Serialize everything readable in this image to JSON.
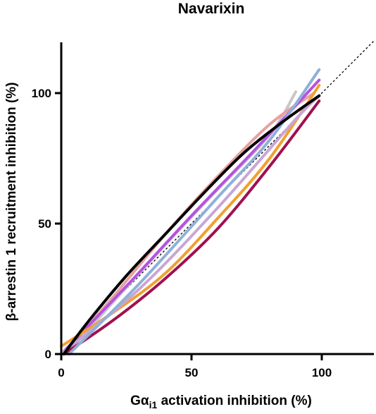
{
  "chart_data": {
    "type": "line",
    "title": "Navarixin",
    "xlabel": {
      "main": "Gα",
      "sub": "i1",
      "rest": " activation inhibition (%)"
    },
    "ylabel": "β-arrestin 1 recruitment inhibition (%)",
    "xlim": [
      0,
      120
    ],
    "ylim": [
      0,
      120
    ],
    "xticks": [
      "0",
      "50",
      "100"
    ],
    "yticks": [
      "0",
      "50",
      "100"
    ],
    "reference_line": {
      "style": "dashed",
      "color": "#000000",
      "points": [
        [
          0,
          0
        ],
        [
          120,
          120
        ]
      ]
    },
    "series": [
      {
        "color": "#c8c8c8",
        "points": [
          [
            2,
            0
          ],
          [
            20,
            20
          ],
          [
            40,
            42
          ],
          [
            60,
            63
          ],
          [
            80,
            84
          ],
          [
            90,
            100.5
          ]
        ]
      },
      {
        "color": "#e8a0a0",
        "points": [
          [
            1,
            0
          ],
          [
            20,
            22
          ],
          [
            40,
            46
          ],
          [
            60,
            68
          ],
          [
            80,
            88
          ],
          [
            97,
            100
          ]
        ]
      },
      {
        "color": "#b552e0",
        "points": [
          [
            0,
            0
          ],
          [
            25,
            26
          ],
          [
            50,
            53
          ],
          [
            75,
            79
          ],
          [
            99,
            105
          ]
        ]
      },
      {
        "color": "#f0a030",
        "points": [
          [
            0,
            3
          ],
          [
            20,
            16
          ],
          [
            40,
            31
          ],
          [
            60,
            52
          ],
          [
            80,
            75
          ],
          [
            99,
            103
          ]
        ]
      },
      {
        "color": "#c7a6d4",
        "points": [
          [
            0,
            0
          ],
          [
            30,
            25
          ],
          [
            60,
            56
          ],
          [
            90,
            90
          ],
          [
            99,
            99
          ]
        ]
      },
      {
        "color": "#a01050",
        "points": [
          [
            1,
            0
          ],
          [
            20,
            13
          ],
          [
            40,
            29
          ],
          [
            60,
            48
          ],
          [
            80,
            72
          ],
          [
            99,
            97
          ]
        ]
      },
      {
        "color": "#90b0d8",
        "points": [
          [
            3,
            0
          ],
          [
            30,
            27
          ],
          [
            60,
            60
          ],
          [
            80,
            82
          ],
          [
            99,
            109
          ]
        ]
      },
      {
        "color": "#000000",
        "points": [
          [
            1,
            0
          ],
          [
            10,
            12
          ],
          [
            25,
            30
          ],
          [
            40,
            46
          ],
          [
            55,
            62
          ],
          [
            70,
            77
          ],
          [
            85,
            89
          ],
          [
            99,
            99
          ]
        ]
      }
    ]
  }
}
